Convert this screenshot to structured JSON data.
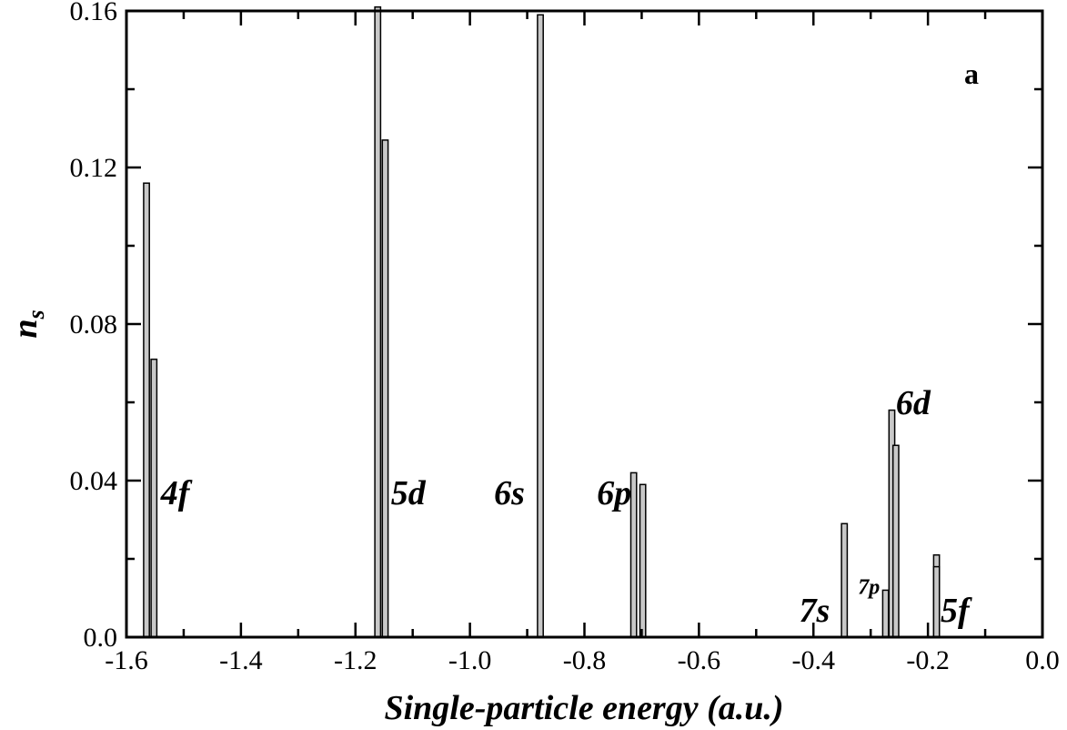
{
  "chart_data": {
    "type": "bar",
    "title": "",
    "panel_label": "a",
    "xlabel": "Single-particle energy (a.u.)",
    "ylabel": "n",
    "ylabel_subscript": "s",
    "xlim": [
      -1.6,
      0.0
    ],
    "ylim": [
      0.0,
      0.16
    ],
    "x_major_ticks": [
      -1.6,
      -1.4,
      -1.2,
      -1.0,
      -0.8,
      -0.6,
      -0.4,
      -0.2,
      0.0
    ],
    "x_tick_labels": [
      "-1.6",
      "-1.4",
      "-1.2",
      "-1.0",
      "-0.8",
      "-0.6",
      "-0.4",
      "-0.2",
      "0.0"
    ],
    "y_major_ticks": [
      0.0,
      0.04,
      0.08,
      0.12,
      0.16
    ],
    "y_tick_labels": [
      "0.0",
      "0.04",
      "0.08",
      "0.12",
      "0.16"
    ],
    "grid": false,
    "bar_width": 0.01,
    "bars": [
      {
        "x": -1.565,
        "y": 0.116
      },
      {
        "x": -1.552,
        "y": 0.071
      },
      {
        "x": -1.161,
        "y": 0.161
      },
      {
        "x": -1.148,
        "y": 0.127
      },
      {
        "x": -0.877,
        "y": 0.159
      },
      {
        "x": -0.714,
        "y": 0.042
      },
      {
        "x": -0.698,
        "y": 0.039
      },
      {
        "x": -0.346,
        "y": 0.029
      },
      {
        "x": -0.274,
        "y": 0.012
      },
      {
        "x": -0.263,
        "y": 0.058
      },
      {
        "x": -0.256,
        "y": 0.049
      },
      {
        "x": -0.185,
        "y": 0.021
      },
      {
        "x": -0.185,
        "y": 0.018
      }
    ],
    "annotations": [
      {
        "text": "4f",
        "x": -1.54,
        "y": 0.034,
        "size": 38
      },
      {
        "text": "5d",
        "x": -1.138,
        "y": 0.034,
        "size": 38
      },
      {
        "text": "6s",
        "x": -0.958,
        "y": 0.034,
        "size": 38
      },
      {
        "text": "6p",
        "x": -0.778,
        "y": 0.034,
        "size": 38
      },
      {
        "text": "6d",
        "x": -0.256,
        "y": 0.057,
        "size": 38
      },
      {
        "text": "7s",
        "x": -0.425,
        "y": 0.004,
        "size": 38
      },
      {
        "text": "7p",
        "x": -0.322,
        "y": 0.011,
        "size": 24
      },
      {
        "text": "5f",
        "x": -0.178,
        "y": 0.004,
        "size": 38
      }
    ]
  }
}
